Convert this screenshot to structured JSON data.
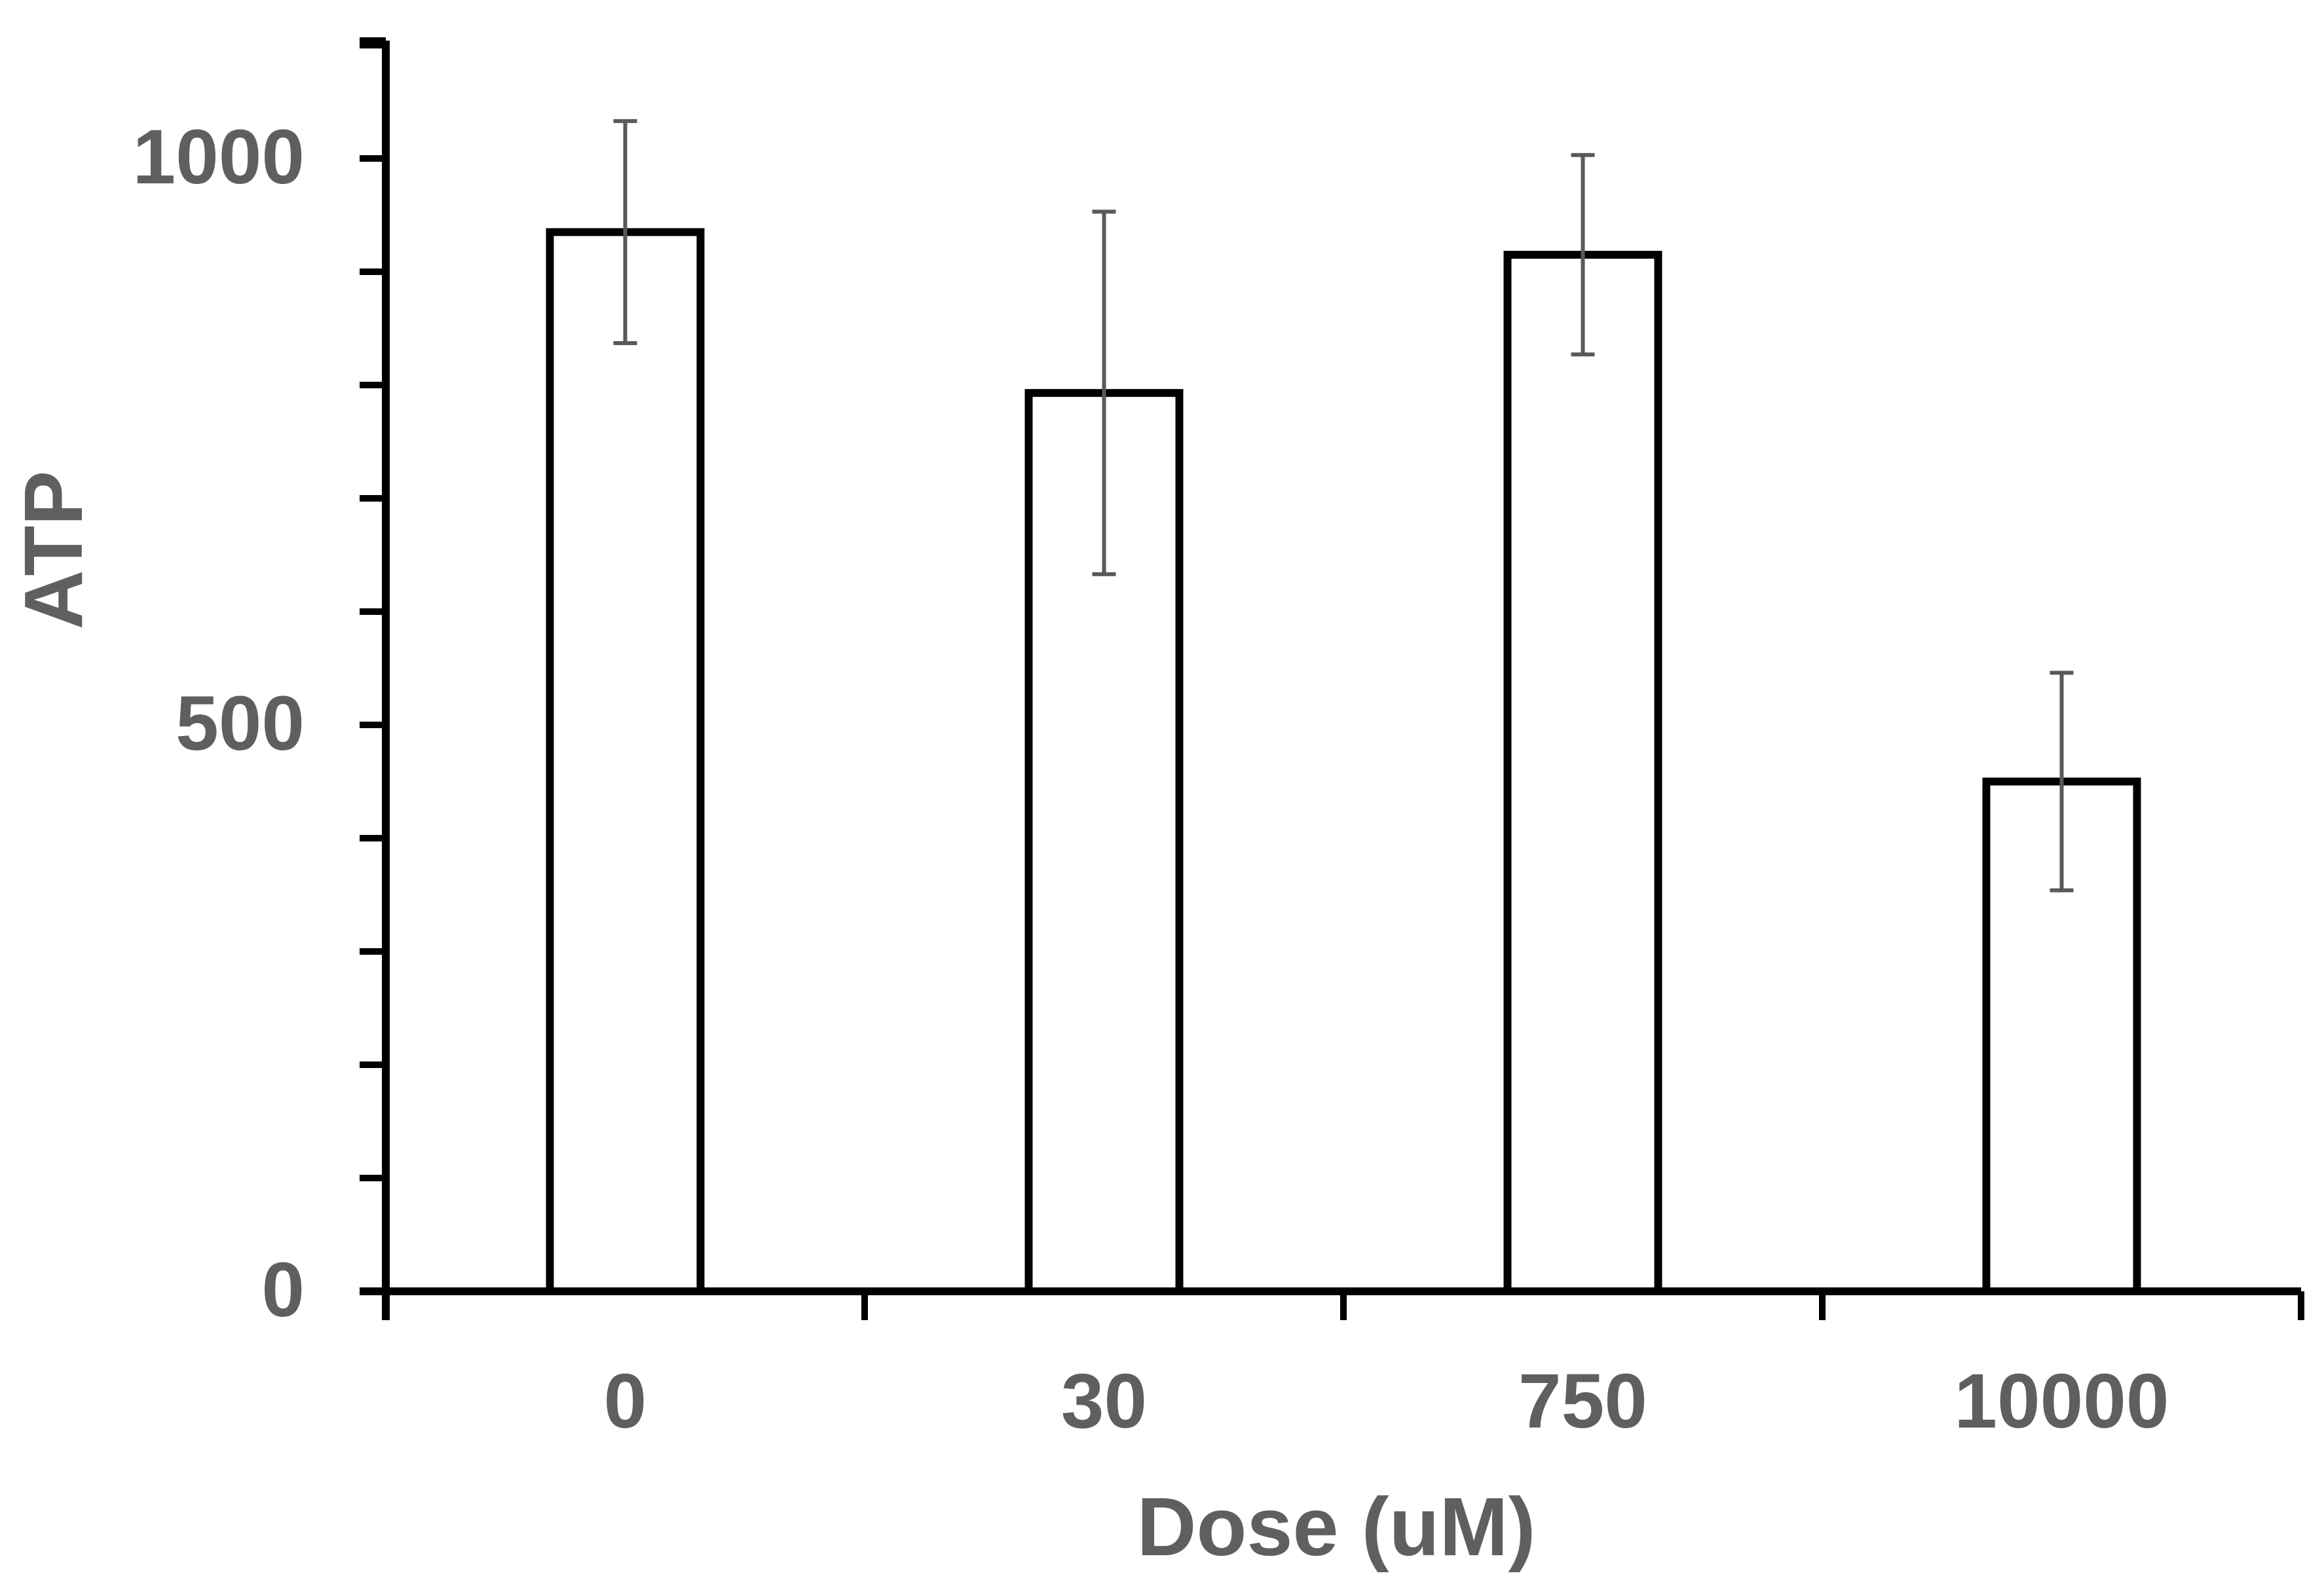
{
  "chart_data": {
    "type": "bar",
    "title": "",
    "xlabel": "Dose (uM)",
    "ylabel": "ATP",
    "categories": [
      "0",
      "30",
      "750",
      "10000"
    ],
    "values": [
      935,
      793,
      915,
      450
    ],
    "error": [
      98,
      160,
      88,
      96
    ],
    "ylim": [
      0,
      1100
    ],
    "yticks": [
      0,
      500,
      1000
    ],
    "y_minor_step": 100,
    "grid": false,
    "legend": "none",
    "colors": {
      "bar_fill": "#ffffff",
      "bar_stroke": "#000000",
      "axis": "#000000",
      "error_bar": "#595959",
      "text": "#5f5f5f"
    }
  }
}
